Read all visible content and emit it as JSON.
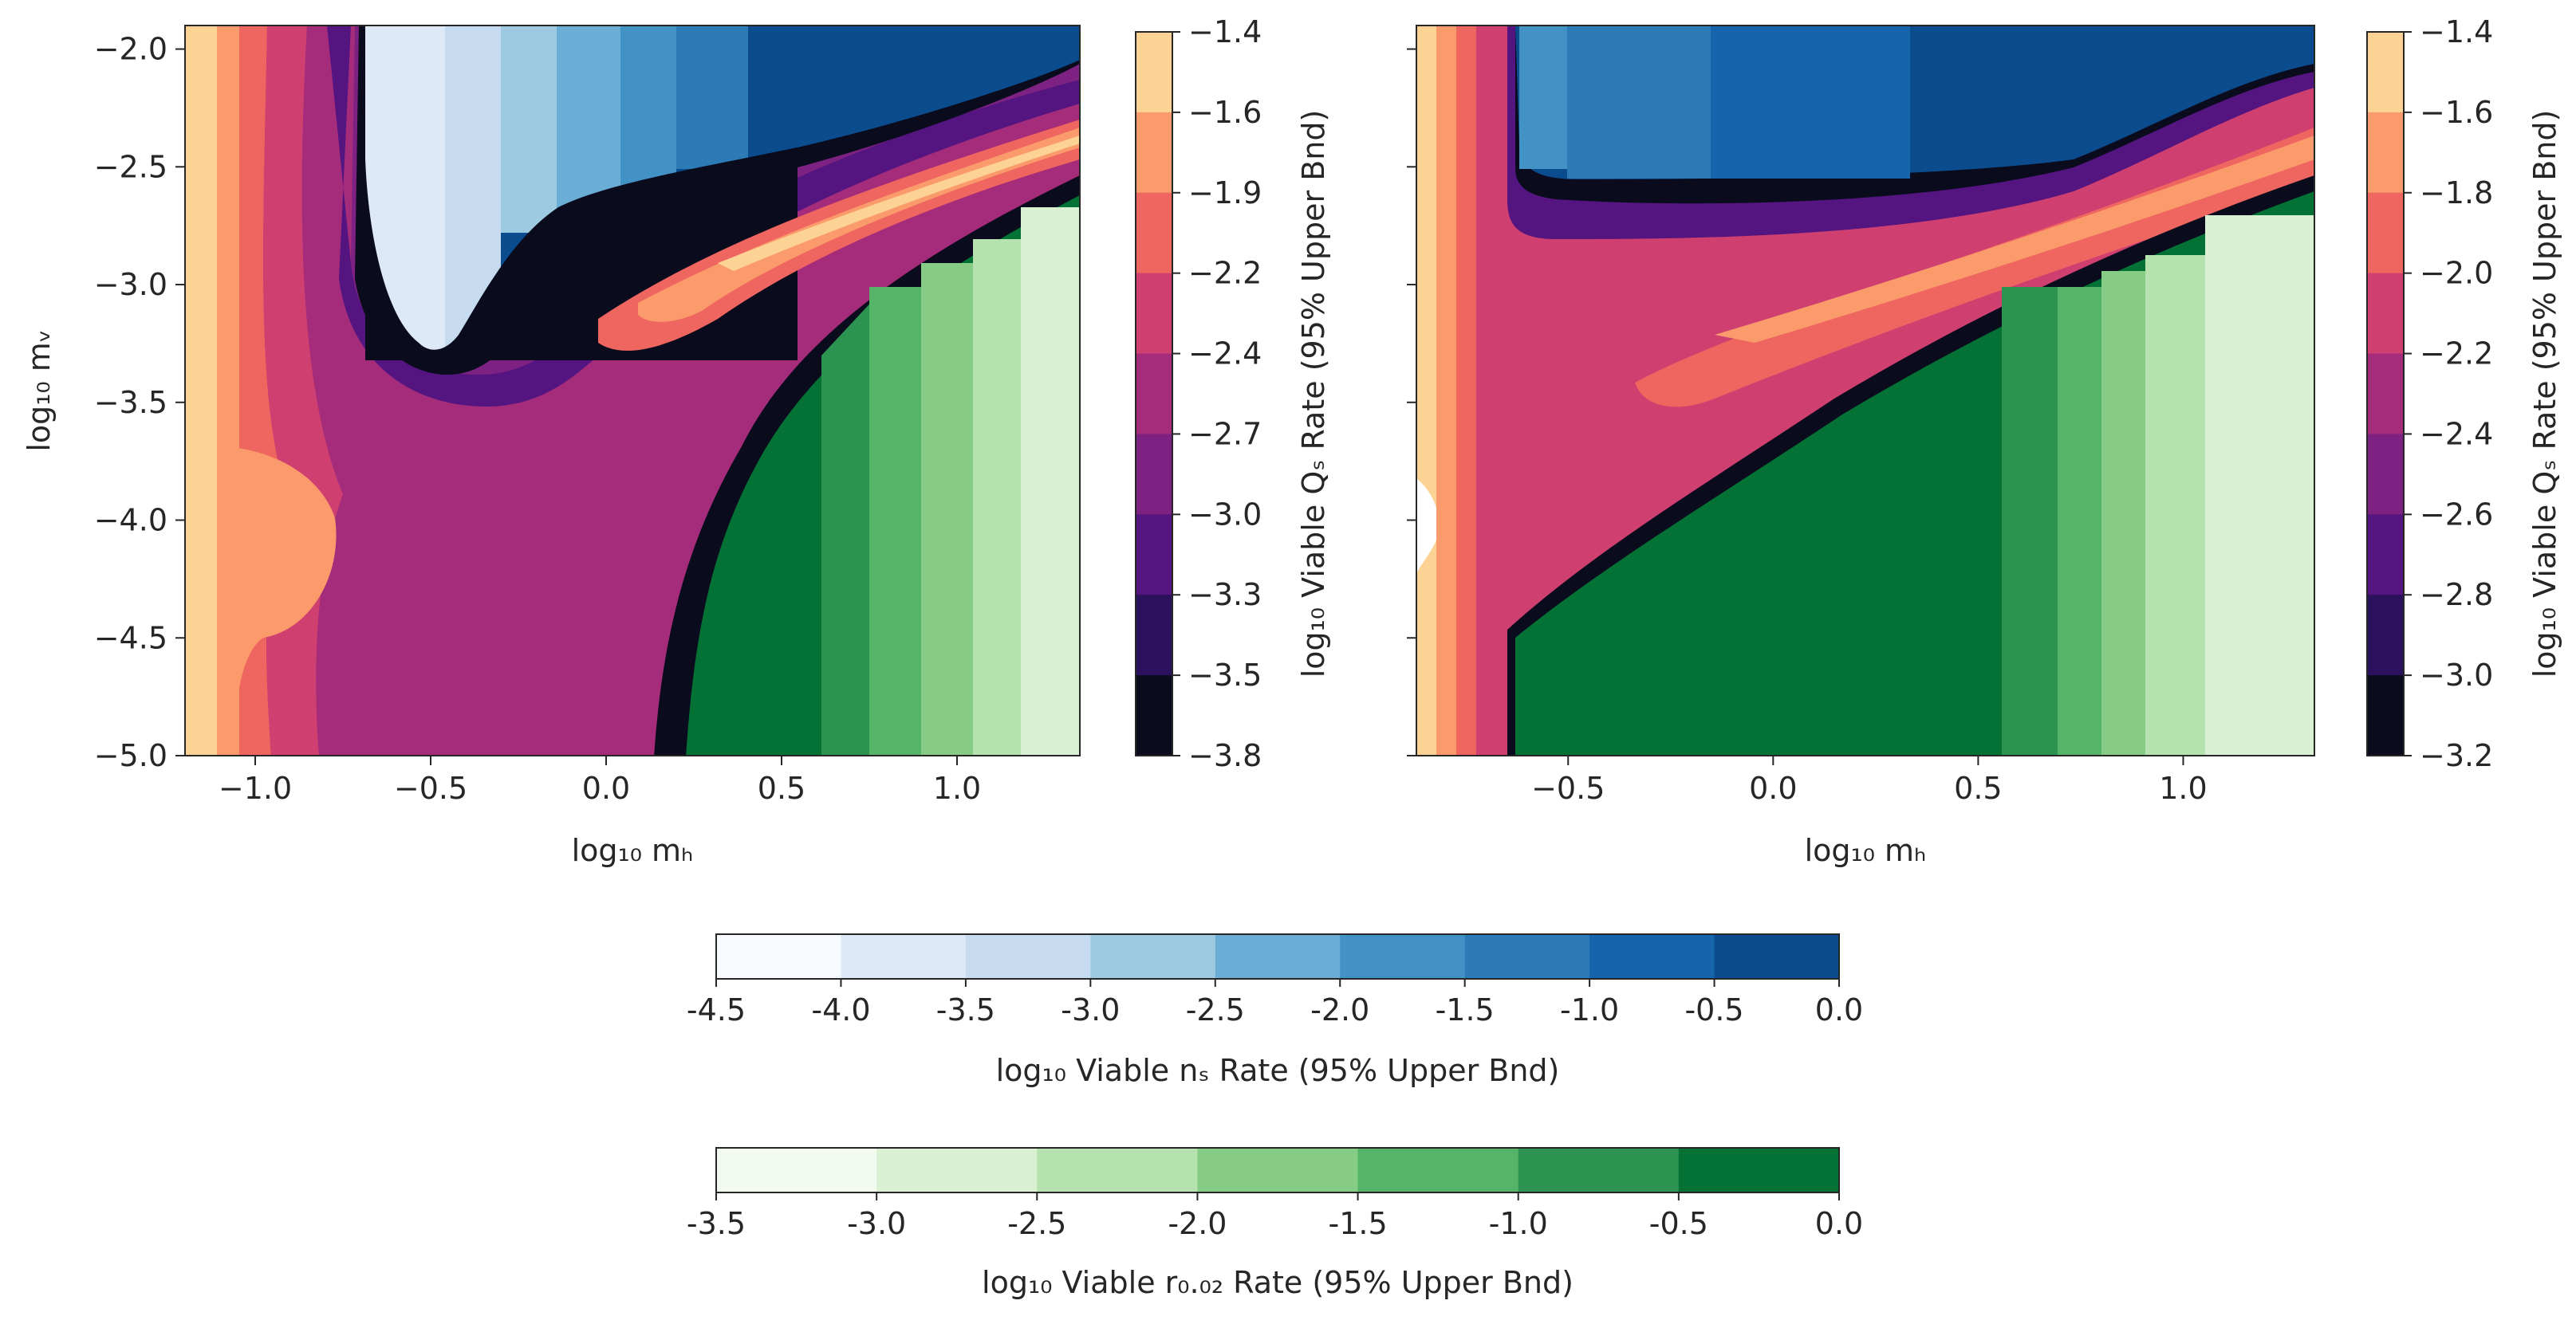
{
  "chart_data": [
    {
      "type": "heatmap",
      "panel": "left",
      "xlabel": "log₁₀ mₕ",
      "ylabel": "log₁₀ mᵥ",
      "xlim": [
        -1.2,
        1.35
      ],
      "ylim": [
        -5.0,
        -1.9
      ],
      "x_ticks": [
        "−1.0",
        "−0.5",
        "0.0",
        "0.5",
        "1.0"
      ],
      "x_tick_values": [
        -1.0,
        -0.5,
        0.0,
        0.5,
        1.0
      ],
      "y_ticks": [
        "−2.0",
        "−2.5",
        "−3.0",
        "−3.5",
        "−4.0",
        "−4.5",
        "−5.0"
      ],
      "y_tick_values": [
        -2.0,
        -2.5,
        -3.0,
        -3.5,
        -4.0,
        -4.5,
        -5.0
      ],
      "colorbar": {
        "label": "log₁₀ Viable Qₛ Rate (95% Upper Bnd)",
        "ticks": [
          "−1.4",
          "−1.6",
          "−1.9",
          "−2.2",
          "−2.4",
          "−2.7",
          "−3.0",
          "−3.3",
          "−3.5",
          "−3.8"
        ],
        "colors": [
          "#fdd295",
          "#fb9b6c",
          "#ef6560",
          "#cf4071",
          "#a52c7a",
          "#7d2282",
          "#541580",
          "#2c115f",
          "#0b0b1e"
        ]
      }
    },
    {
      "type": "heatmap",
      "panel": "right",
      "xlabel": "log₁₀ mₕ",
      "ylabel": "",
      "xlim": [
        -0.87,
        1.32
      ],
      "ylim": [
        -5.0,
        -1.9
      ],
      "x_ticks": [
        "−0.5",
        "0.0",
        "0.5",
        "1.0"
      ],
      "x_tick_values": [
        -0.5,
        0.0,
        0.5,
        1.0
      ],
      "y_tick_values": [
        -2.0,
        -2.5,
        -3.0,
        -3.5,
        -4.0,
        -4.5,
        -5.0
      ],
      "colorbar": {
        "label": "log₁₀ Viable Qₛ Rate (95% Upper Bnd)",
        "ticks": [
          "−1.4",
          "−1.6",
          "−1.8",
          "−2.0",
          "−2.2",
          "−2.4",
          "−2.6",
          "−2.8",
          "−3.0",
          "−3.2"
        ],
        "colors": [
          "#fdd295",
          "#fb9b6c",
          "#ef6560",
          "#cf4071",
          "#a52c7a",
          "#7d2282",
          "#541580",
          "#2c115f",
          "#0b0b1e"
        ]
      }
    },
    {
      "type": "colorbar",
      "label": "log₁₀ Viable nₛ Rate (95% Upper Bnd)",
      "ticks": [
        "-4.5",
        "-4.0",
        "-3.5",
        "-3.0",
        "-2.5",
        "-2.0",
        "-1.5",
        "-1.0",
        "-0.5",
        "0.0"
      ],
      "colors": [
        "#f7fbff",
        "#dde9f6",
        "#c6dbef",
        "#9ecae1",
        "#6aaed6",
        "#4392c6",
        "#2c7bb6",
        "#1664ab",
        "#0b4c8f"
      ]
    },
    {
      "type": "colorbar",
      "label": "log₁₀ Viable r₀.₀₂ Rate (95% Upper Bnd)",
      "ticks": [
        "-3.5",
        "-3.0",
        "-2.5",
        "-2.0",
        "-1.5",
        "-1.0",
        "-0.5",
        "0.0"
      ],
      "colors": [
        "#f2faef",
        "#daf0d3",
        "#b5e2ae",
        "#86cc84",
        "#55b468",
        "#2c9350",
        "#047235"
      ]
    }
  ]
}
